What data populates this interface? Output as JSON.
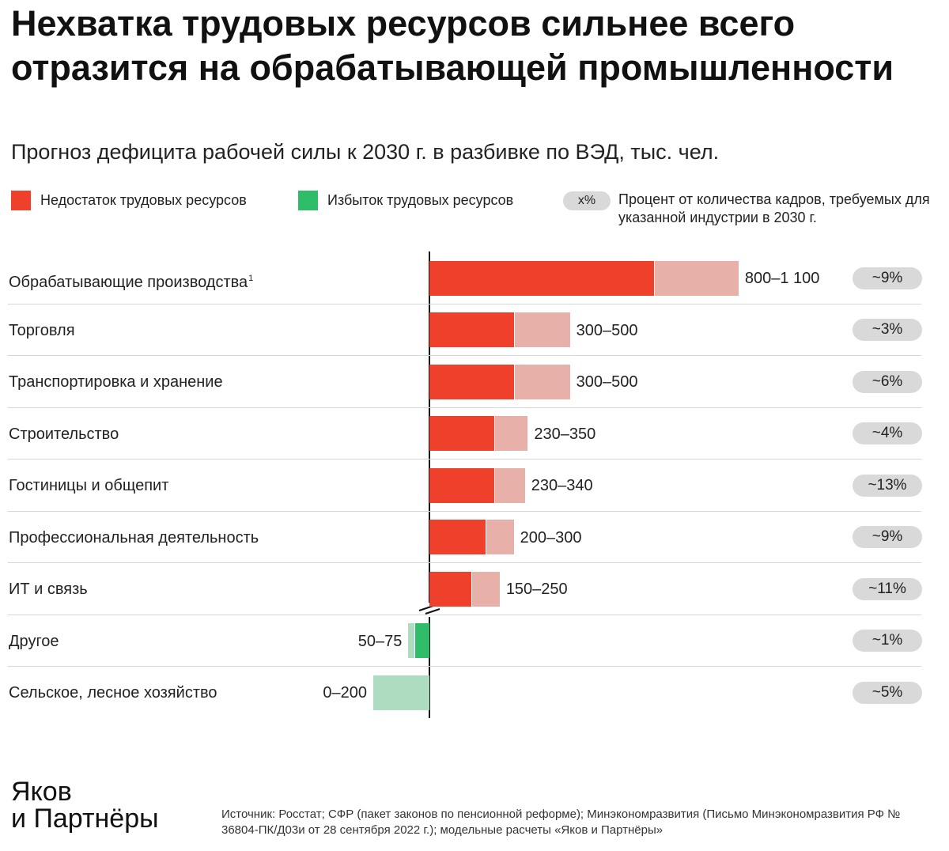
{
  "title": "Нехватка трудовых ресурсов сильнее всего отразится на обрабатывающей промышленности",
  "subtitle": "Прогноз дефицита рабочей силы к 2030 г. в разбивке по ВЭД, тыс. чел.",
  "legend": {
    "shortage": "Недостаток трудовых ресурсов",
    "surplus": "Избыток трудовых ресурсов",
    "pct_sample": "x%",
    "pct_note": "Процент от количества кадров, требуемых для указанной индустрии в 2030 г."
  },
  "colors": {
    "shortage_dark": "#ee402a",
    "shortage_light": "#e7b0a8",
    "surplus_dark": "#2fbd69",
    "surplus_light": "#aedcc0",
    "pill": "#d9d9d9",
    "axis": "#111111"
  },
  "chart_data": {
    "type": "bar",
    "orientation": "horizontal",
    "title": "Нехватка трудовых ресурсов сильнее всего отразится на обрабатывающей промышленности",
    "subtitle": "Прогноз дефицита рабочей силы к 2030 г. в разбивке по ВЭД, тыс. чел.",
    "unit": "тыс. чел.",
    "axis_break": "between ИТ и связь and Другое",
    "rows": [
      {
        "category": "Обрабатывающие производства",
        "footnote": "1",
        "direction": "shortage",
        "low": 800,
        "high": 1100,
        "range_label": "800–1 100",
        "pct": "~9%"
      },
      {
        "category": "Торговля",
        "footnote": "",
        "direction": "shortage",
        "low": 300,
        "high": 500,
        "range_label": "300–500",
        "pct": "~3%"
      },
      {
        "category": "Транспортировка и хранение",
        "footnote": "",
        "direction": "shortage",
        "low": 300,
        "high": 500,
        "range_label": "300–500",
        "pct": "~6%"
      },
      {
        "category": "Строительство",
        "footnote": "",
        "direction": "shortage",
        "low": 230,
        "high": 350,
        "range_label": "230–350",
        "pct": "~4%"
      },
      {
        "category": "Гостиницы и общепит",
        "footnote": "",
        "direction": "shortage",
        "low": 230,
        "high": 340,
        "range_label": "230–340",
        "pct": "~13%"
      },
      {
        "category": "Профессиональная деятельность",
        "footnote": "",
        "direction": "shortage",
        "low": 200,
        "high": 300,
        "range_label": "200–300",
        "pct": "~9%"
      },
      {
        "category": "ИТ и связь",
        "footnote": "",
        "direction": "shortage",
        "low": 150,
        "high": 250,
        "range_label": "150–250",
        "pct": "~11%"
      },
      {
        "category": "Другое",
        "footnote": "",
        "direction": "surplus",
        "low": 50,
        "high": 75,
        "range_label": "50–75",
        "pct": "~1%"
      },
      {
        "category": "Сельское, лесное хозяйство",
        "footnote": "",
        "direction": "surplus",
        "low": 0,
        "high": 200,
        "range_label": "0–200",
        "pct": "~5%"
      }
    ]
  },
  "footer": {
    "logo_line1": "Яков",
    "logo_line2": "и Партнёры",
    "source": "Источник: Росстат; СФР (пакет законов по пенсионной реформе); Минэкономразвития (Письмо Минэкономразвития РФ № 36804-ПК/Д03и от 28 сентября 2022 г.); модельные расчеты «Яков и Партнёры»"
  }
}
